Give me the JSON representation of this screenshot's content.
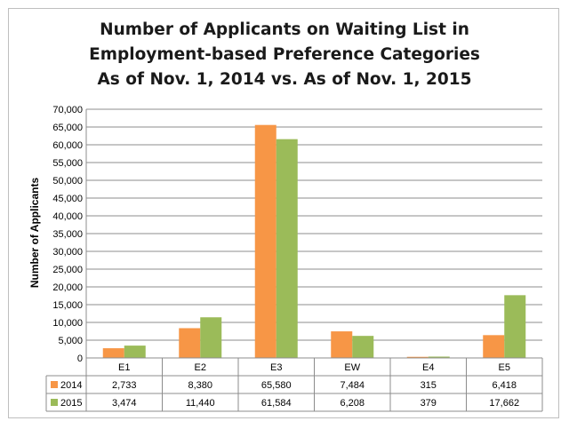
{
  "chart_data": {
    "type": "bar",
    "title_lines": [
      "Number of Applicants on Waiting List in",
      "Employment-based Preference Categories",
      "As of Nov. 1, 2014 vs. As of Nov. 1, 2015"
    ],
    "ylabel": "Number of Applicants",
    "xlabel": "",
    "ylim": [
      0,
      70000
    ],
    "y_ticks": [
      "0",
      "5,000",
      "10,000",
      "15,000",
      "20,000",
      "25,000",
      "30,000",
      "35,000",
      "40,000",
      "45,000",
      "50,000",
      "55,000",
      "60,000",
      "65,000",
      "70,000"
    ],
    "y_tick_values": [
      0,
      5000,
      10000,
      15000,
      20000,
      25000,
      30000,
      35000,
      40000,
      45000,
      50000,
      55000,
      60000,
      65000,
      70000
    ],
    "grid": true,
    "legend_placement": "data-table",
    "categories": [
      "E1",
      "E2",
      "E3",
      "EW",
      "E4",
      "E5"
    ],
    "series": [
      {
        "name": "2014",
        "color": "#f79646",
        "values": [
          2733,
          8380,
          65580,
          7484,
          315,
          6418
        ],
        "labels": [
          "2,733",
          "8,380",
          "65,580",
          "7,484",
          "315",
          "6,418"
        ]
      },
      {
        "name": "2015",
        "color": "#9bbb59",
        "values": [
          3474,
          11440,
          61584,
          6208,
          379,
          17662
        ],
        "labels": [
          "3,474",
          "11,440",
          "61,584",
          "6,208",
          "379",
          "17,662"
        ]
      }
    ]
  }
}
